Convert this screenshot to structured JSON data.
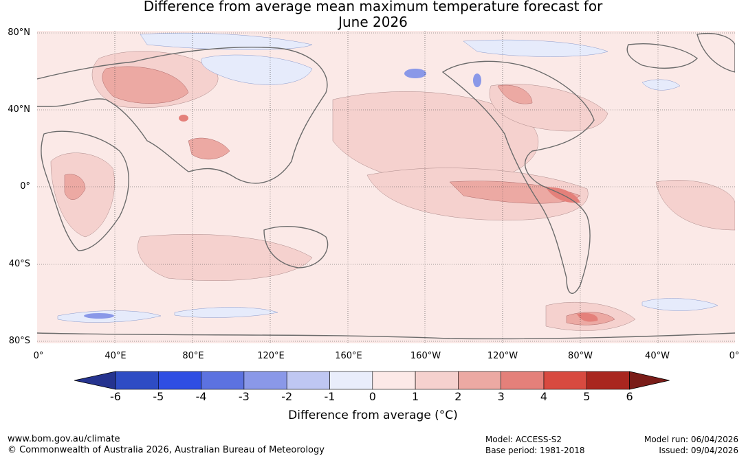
{
  "title": {
    "line1": "Difference from average mean maximum temperature forecast for",
    "line2": "June 2026"
  },
  "map": {
    "lat_labels": [
      "80°N",
      "40°N",
      "0°",
      "40°S",
      "80°S"
    ],
    "lon_labels": [
      "0°",
      "40°E",
      "80°E",
      "120°E",
      "160°E",
      "160°W",
      "120°W",
      "80°W",
      "40°W",
      "0°"
    ]
  },
  "colorbar": {
    "ticks": [
      "-6",
      "-5",
      "-4",
      "-3",
      "-2",
      "-1",
      "0",
      "1",
      "2",
      "3",
      "4",
      "5",
      "6"
    ],
    "colors": [
      "#25338f",
      "#2e4cc4",
      "#2f4ee3",
      "#5c72e0",
      "#8a98e8",
      "#bfc7f2",
      "#e9edfb",
      "#fce9e7",
      "#f5d1ce",
      "#eca9a3",
      "#e4807a",
      "#d84a40",
      "#a9261f",
      "#7a1c18"
    ],
    "label": "Difference from average (°C)"
  },
  "footer": {
    "url": "www.bom.gov.au/climate",
    "copyright": "© Commonwealth of Australia 2026, Australian Bureau of Meteorology",
    "model": "Model: ACCESS-S2",
    "base_period": "Base period: 1981-2018",
    "model_run": "Model run: 06/04/2026",
    "issued": "Issued: 09/04/2026"
  }
}
